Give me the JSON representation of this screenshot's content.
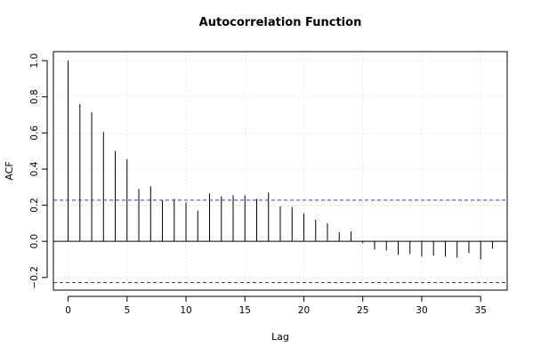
{
  "chart_data": {
    "type": "bar",
    "subtype": "acf-lollipop",
    "title": "Autocorrelation Function",
    "xlabel": "Lag",
    "ylabel": "ACF",
    "xlim": [
      -1.25,
      37.25
    ],
    "ylim": [
      -0.27,
      1.05
    ],
    "x_ticks": [
      0,
      5,
      10,
      15,
      20,
      25,
      30,
      35
    ],
    "y_ticks": [
      -0.2,
      0.0,
      0.2,
      0.4,
      0.6,
      0.8,
      1.0
    ],
    "y_tick_labels": [
      "−0.2",
      "0.0",
      "0.2",
      "0.4",
      "0.6",
      "0.8",
      "1.0"
    ],
    "grid": true,
    "x": [
      0,
      1,
      2,
      3,
      4,
      5,
      6,
      7,
      8,
      9,
      10,
      11,
      12,
      13,
      14,
      15,
      16,
      17,
      18,
      19,
      20,
      21,
      22,
      23,
      24,
      25,
      26,
      27,
      28,
      29,
      30,
      31,
      32,
      33,
      34,
      35,
      36
    ],
    "values": [
      1.0,
      0.76,
      0.715,
      0.605,
      0.5,
      0.455,
      0.29,
      0.305,
      0.23,
      0.235,
      0.215,
      0.17,
      0.265,
      0.25,
      0.255,
      0.255,
      0.235,
      0.27,
      0.195,
      0.19,
      0.155,
      0.12,
      0.1,
      0.05,
      0.055,
      -0.01,
      -0.045,
      -0.05,
      -0.075,
      -0.07,
      -0.085,
      -0.08,
      -0.085,
      -0.09,
      -0.065,
      -0.1,
      -0.04
    ],
    "confidence_bounds": [
      0.228,
      -0.228
    ],
    "colors": {
      "bars": "#000000",
      "confidence": "#3333ff",
      "axis": "#000000",
      "grid": "#d3d3d3"
    }
  }
}
